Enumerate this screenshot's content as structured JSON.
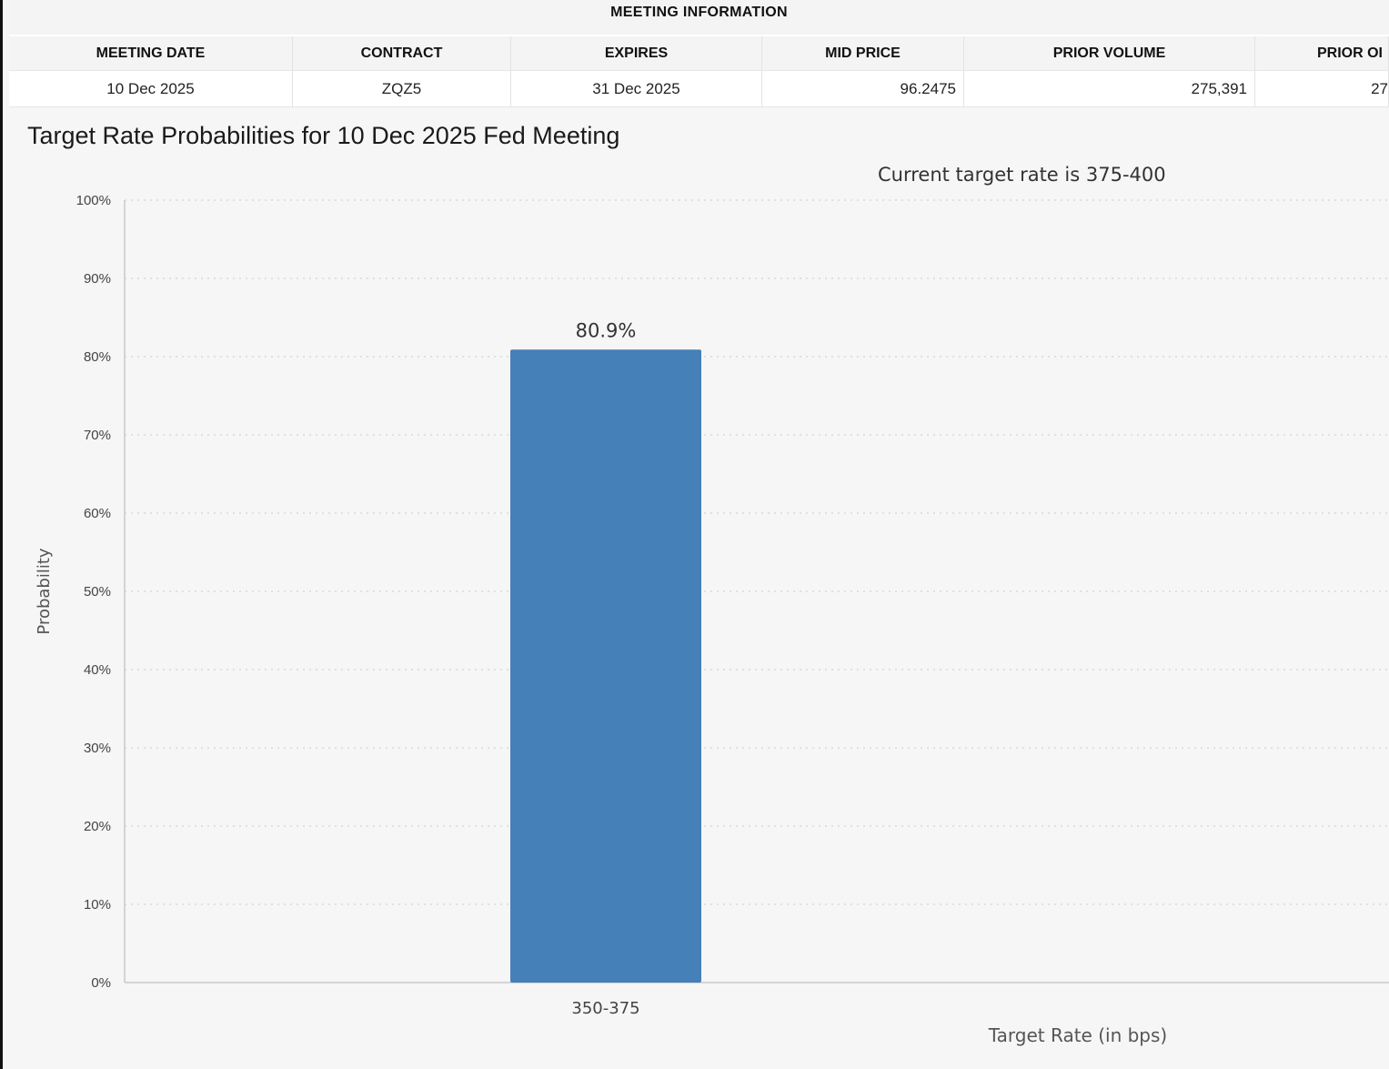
{
  "meeting_info": {
    "heading": "MEETING INFORMATION",
    "columns": [
      "MEETING DATE",
      "CONTRACT",
      "EXPIRES",
      "MID PRICE",
      "PRIOR VOLUME",
      "PRIOR OI"
    ],
    "row": [
      "10 Dec 2025",
      "ZQZ5",
      "31 Dec 2025",
      "96.2475",
      "275,391",
      "27"
    ]
  },
  "chart_data": {
    "type": "bar",
    "title": "Target Rate Probabilities for 10 Dec 2025 Fed Meeting",
    "annotation": "Current target rate is 375-400",
    "xlabel": "Target Rate (in bps)",
    "ylabel": "Probability",
    "categories": [
      "350-375"
    ],
    "values": [
      80.9
    ],
    "data_labels": [
      "80.9%"
    ],
    "ylim": [
      0,
      100
    ],
    "yticks": [
      "0%",
      "10%",
      "20%",
      "30%",
      "40%",
      "50%",
      "60%",
      "70%",
      "80%",
      "90%",
      "100%"
    ],
    "grid": true,
    "bar_color": "#4580b8"
  }
}
